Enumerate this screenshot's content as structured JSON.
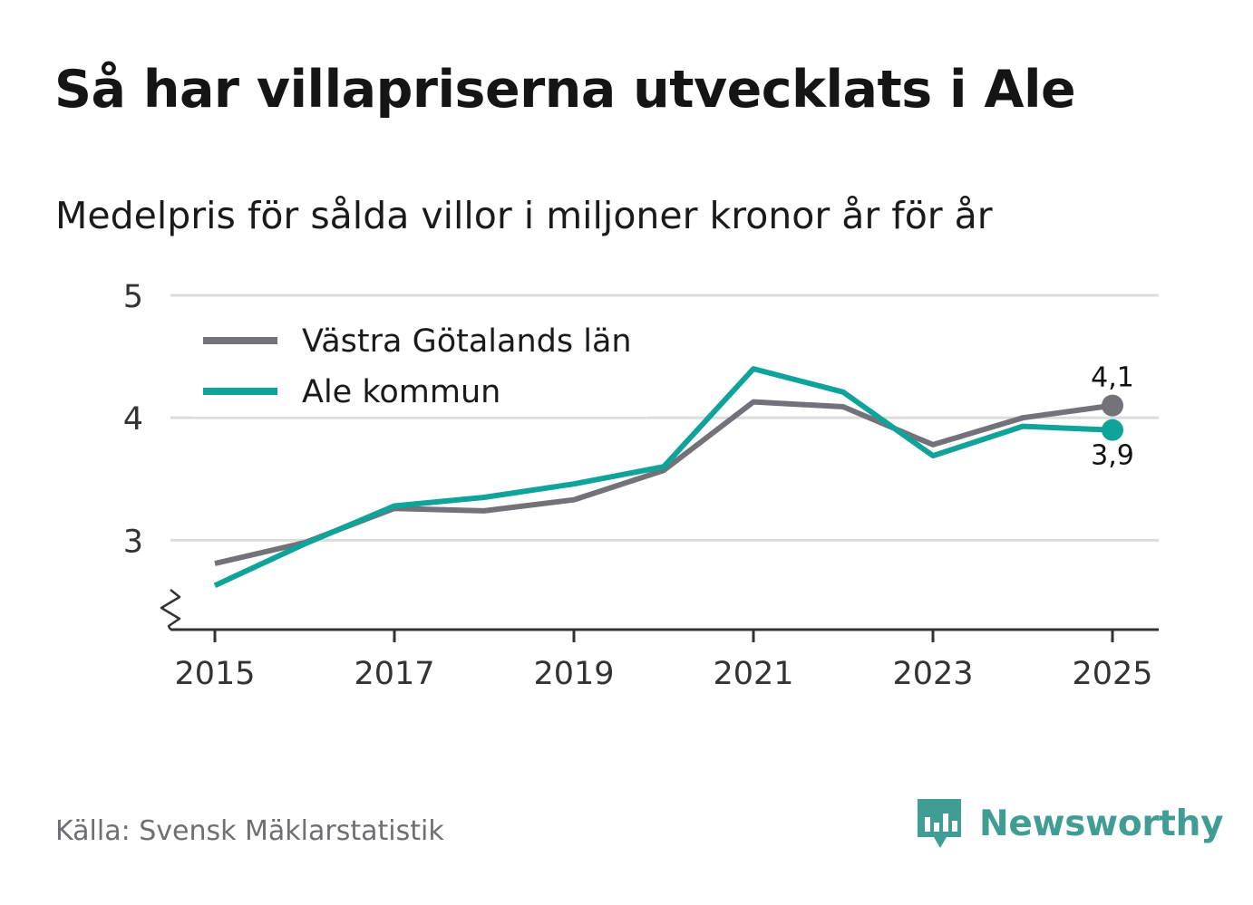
{
  "header": {
    "title": "Så har villapriserna utvecklats i Ale",
    "subtitle": "Medelpris för sålda villor i miljoner kronor år för år"
  },
  "footer": {
    "source": "Källa: Svensk Mäklarstatistik",
    "brand": "Newsworthy",
    "brand_icon": "bar-chart-speech-bubble-icon"
  },
  "colors": {
    "vastra": "#747279",
    "ale": "#0fa39a",
    "grid": "#dcdcdc",
    "axis": "#333333",
    "brand": "#3f9d94"
  },
  "chart_data": {
    "type": "line",
    "title": "Så har villapriserna utvecklats i Ale",
    "subtitle": "Medelpris för sålda villor i miljoner kronor år för år",
    "xlabel": "",
    "ylabel": "",
    "x": [
      2015,
      2016,
      2017,
      2018,
      2019,
      2020,
      2021,
      2022,
      2023,
      2024,
      2025
    ],
    "x_ticks": [
      "2015",
      "2017",
      "2019",
      "2021",
      "2023",
      "2025"
    ],
    "y_ticks": [
      "3",
      "4",
      "5"
    ],
    "ylim": [
      2.27,
      5.0
    ],
    "y_axis_break": true,
    "grid": true,
    "legend_position": "top-left",
    "series": [
      {
        "name": "Västra Götalands län",
        "color": "#747279",
        "values": [
          2.81,
          2.98,
          3.26,
          3.24,
          3.33,
          3.57,
          4.13,
          4.09,
          3.78,
          4.0,
          4.1
        ],
        "end_label": "4,1"
      },
      {
        "name": "Ale kommun",
        "color": "#0fa39a",
        "values": [
          2.63,
          2.97,
          3.28,
          3.35,
          3.46,
          3.6,
          4.4,
          4.21,
          3.69,
          3.93,
          3.9
        ],
        "end_label": "3,9"
      }
    ]
  }
}
